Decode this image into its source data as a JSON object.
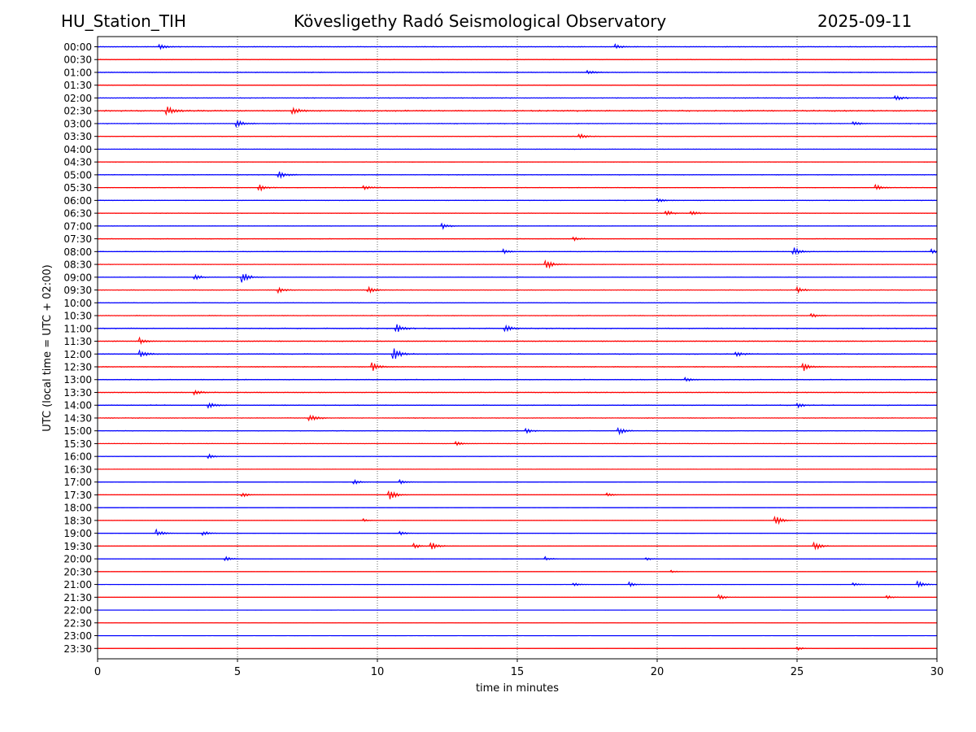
{
  "header": {
    "station": "HU_Station_TIH",
    "observatory": "Kövesligethy Radó Seismological Observatory",
    "date": "2025-09-11"
  },
  "chart_data": {
    "type": "line",
    "title": "Kövesligethy Radó Seismological Observatory",
    "xlabel": "time in minutes",
    "ylabel": "UTC (local time = UTC + 02:00)",
    "xlim": [
      0,
      30
    ],
    "x_ticks": [
      "0",
      "5",
      "10",
      "15",
      "20",
      "25",
      "30"
    ],
    "grid": "vertical dotted lines at 5-minute intervals",
    "colors": {
      "even_rows": "#0000ff",
      "odd_rows": "#ff0000"
    },
    "rows": [
      {
        "label": "00:00",
        "noise": 0.45,
        "events": [
          {
            "t": 2.2,
            "amp": 0.7
          },
          {
            "t": 18.5,
            "amp": 0.6
          }
        ]
      },
      {
        "label": "00:30",
        "noise": 0.45,
        "events": []
      },
      {
        "label": "01:00",
        "noise": 0.5,
        "events": [
          {
            "t": 17.5,
            "amp": 0.6
          }
        ]
      },
      {
        "label": "01:30",
        "noise": 0.45,
        "events": []
      },
      {
        "label": "02:00",
        "noise": 0.55,
        "events": [
          {
            "t": 28.5,
            "amp": 0.7
          }
        ]
      },
      {
        "label": "02:30",
        "noise": 0.9,
        "events": [
          {
            "t": 2.5,
            "amp": 1.0
          },
          {
            "t": 7.0,
            "amp": 0.9
          }
        ]
      },
      {
        "label": "03:00",
        "noise": 0.5,
        "events": [
          {
            "t": 5.0,
            "amp": 0.8
          },
          {
            "t": 27.0,
            "amp": 0.6
          }
        ]
      },
      {
        "label": "03:30",
        "noise": 0.4,
        "events": [
          {
            "t": 17.2,
            "amp": 0.8
          }
        ]
      },
      {
        "label": "04:00",
        "noise": 0.35,
        "events": []
      },
      {
        "label": "04:30",
        "noise": 0.35,
        "events": []
      },
      {
        "label": "05:00",
        "noise": 0.45,
        "events": [
          {
            "t": 6.5,
            "amp": 1.0
          }
        ]
      },
      {
        "label": "05:30",
        "noise": 0.4,
        "events": [
          {
            "t": 5.8,
            "amp": 0.8
          },
          {
            "t": 9.5,
            "amp": 0.6
          },
          {
            "t": 27.8,
            "amp": 0.8
          }
        ]
      },
      {
        "label": "06:00",
        "noise": 0.4,
        "events": [
          {
            "t": 20.0,
            "amp": 0.6
          }
        ]
      },
      {
        "label": "06:30",
        "noise": 0.4,
        "events": [
          {
            "t": 20.3,
            "amp": 0.8
          },
          {
            "t": 21.2,
            "amp": 0.6
          }
        ]
      },
      {
        "label": "07:00",
        "noise": 0.35,
        "events": [
          {
            "t": 12.3,
            "amp": 0.8
          }
        ]
      },
      {
        "label": "07:30",
        "noise": 0.4,
        "events": [
          {
            "t": 17.0,
            "amp": 0.5
          }
        ]
      },
      {
        "label": "08:00",
        "noise": 0.4,
        "events": [
          {
            "t": 14.5,
            "amp": 0.6
          },
          {
            "t": 24.9,
            "amp": 1.0
          },
          {
            "t": 29.8,
            "amp": 0.7
          }
        ]
      },
      {
        "label": "08:30",
        "noise": 0.35,
        "events": [
          {
            "t": 16.0,
            "amp": 1.6
          }
        ]
      },
      {
        "label": "09:00",
        "noise": 0.35,
        "events": [
          {
            "t": 3.5,
            "amp": 0.7
          },
          {
            "t": 5.2,
            "amp": 1.3
          }
        ]
      },
      {
        "label": "09:30",
        "noise": 0.4,
        "events": [
          {
            "t": 6.5,
            "amp": 0.7
          },
          {
            "t": 9.7,
            "amp": 0.7
          },
          {
            "t": 25.0,
            "amp": 0.8
          }
        ]
      },
      {
        "label": "10:00",
        "noise": 0.4,
        "events": []
      },
      {
        "label": "10:30",
        "noise": 0.45,
        "events": [
          {
            "t": 25.5,
            "amp": 0.6
          }
        ]
      },
      {
        "label": "11:00",
        "noise": 0.65,
        "events": [
          {
            "t": 10.7,
            "amp": 1.0
          },
          {
            "t": 14.6,
            "amp": 0.8
          }
        ]
      },
      {
        "label": "11:30",
        "noise": 0.6,
        "events": [
          {
            "t": 1.5,
            "amp": 0.8
          }
        ]
      },
      {
        "label": "12:00",
        "noise": 0.6,
        "events": [
          {
            "t": 1.5,
            "amp": 0.9
          },
          {
            "t": 10.6,
            "amp": 1.5
          },
          {
            "t": 22.8,
            "amp": 0.7
          }
        ]
      },
      {
        "label": "12:30",
        "noise": 0.55,
        "events": [
          {
            "t": 9.8,
            "amp": 1.2
          },
          {
            "t": 25.2,
            "amp": 1.2
          }
        ]
      },
      {
        "label": "13:00",
        "noise": 0.55,
        "events": [
          {
            "t": 21.0,
            "amp": 0.6
          }
        ]
      },
      {
        "label": "13:30",
        "noise": 0.5,
        "events": [
          {
            "t": 3.5,
            "amp": 0.6
          }
        ]
      },
      {
        "label": "14:00",
        "noise": 0.55,
        "events": [
          {
            "t": 4.0,
            "amp": 0.6
          },
          {
            "t": 25.0,
            "amp": 0.7
          }
        ]
      },
      {
        "label": "14:30",
        "noise": 0.5,
        "events": [
          {
            "t": 7.6,
            "amp": 0.9
          }
        ]
      },
      {
        "label": "15:00",
        "noise": 0.4,
        "events": [
          {
            "t": 15.3,
            "amp": 0.7
          },
          {
            "t": 18.6,
            "amp": 1.0
          }
        ]
      },
      {
        "label": "15:30",
        "noise": 0.3,
        "events": [
          {
            "t": 12.8,
            "amp": 0.5
          }
        ]
      },
      {
        "label": "16:00",
        "noise": 0.3,
        "events": [
          {
            "t": 4.0,
            "amp": 0.5
          }
        ]
      },
      {
        "label": "16:30",
        "noise": 0.2,
        "events": []
      },
      {
        "label": "17:00",
        "noise": 0.2,
        "events": [
          {
            "t": 9.2,
            "amp": 0.5
          },
          {
            "t": 10.8,
            "amp": 0.6
          }
        ]
      },
      {
        "label": "17:30",
        "noise": 0.2,
        "events": [
          {
            "t": 5.2,
            "amp": 0.5
          },
          {
            "t": 10.4,
            "amp": 1.7
          },
          {
            "t": 18.2,
            "amp": 0.5
          }
        ]
      },
      {
        "label": "18:00",
        "noise": 0.15,
        "events": []
      },
      {
        "label": "18:30",
        "noise": 0.2,
        "events": [
          {
            "t": 9.5,
            "amp": 0.4
          },
          {
            "t": 24.2,
            "amp": 1.6
          }
        ]
      },
      {
        "label": "19:00",
        "noise": 0.2,
        "events": [
          {
            "t": 2.1,
            "amp": 0.9
          },
          {
            "t": 3.8,
            "amp": 0.5
          },
          {
            "t": 10.8,
            "amp": 0.5
          }
        ]
      },
      {
        "label": "19:30",
        "noise": 0.2,
        "events": [
          {
            "t": 11.3,
            "amp": 0.7
          },
          {
            "t": 11.9,
            "amp": 1.2
          },
          {
            "t": 25.6,
            "amp": 1.3
          }
        ]
      },
      {
        "label": "20:00",
        "noise": 0.15,
        "events": [
          {
            "t": 4.6,
            "amp": 0.5
          },
          {
            "t": 16.0,
            "amp": 0.5
          },
          {
            "t": 19.6,
            "amp": 0.4
          }
        ]
      },
      {
        "label": "20:30",
        "noise": 0.15,
        "events": [
          {
            "t": 20.5,
            "amp": 0.3
          }
        ]
      },
      {
        "label": "21:00",
        "noise": 0.15,
        "events": [
          {
            "t": 17.0,
            "amp": 0.5
          },
          {
            "t": 19.0,
            "amp": 0.6
          },
          {
            "t": 27.0,
            "amp": 0.4
          },
          {
            "t": 29.3,
            "amp": 1.0
          }
        ]
      },
      {
        "label": "21:30",
        "noise": 0.15,
        "events": [
          {
            "t": 22.2,
            "amp": 0.7
          },
          {
            "t": 28.2,
            "amp": 0.5
          }
        ]
      },
      {
        "label": "22:00",
        "noise": 0.12,
        "events": []
      },
      {
        "label": "22:30",
        "noise": 0.12,
        "events": []
      },
      {
        "label": "23:00",
        "noise": 0.12,
        "events": []
      },
      {
        "label": "23:30",
        "noise": 0.15,
        "events": [
          {
            "t": 25.0,
            "amp": 0.5
          }
        ]
      }
    ]
  }
}
